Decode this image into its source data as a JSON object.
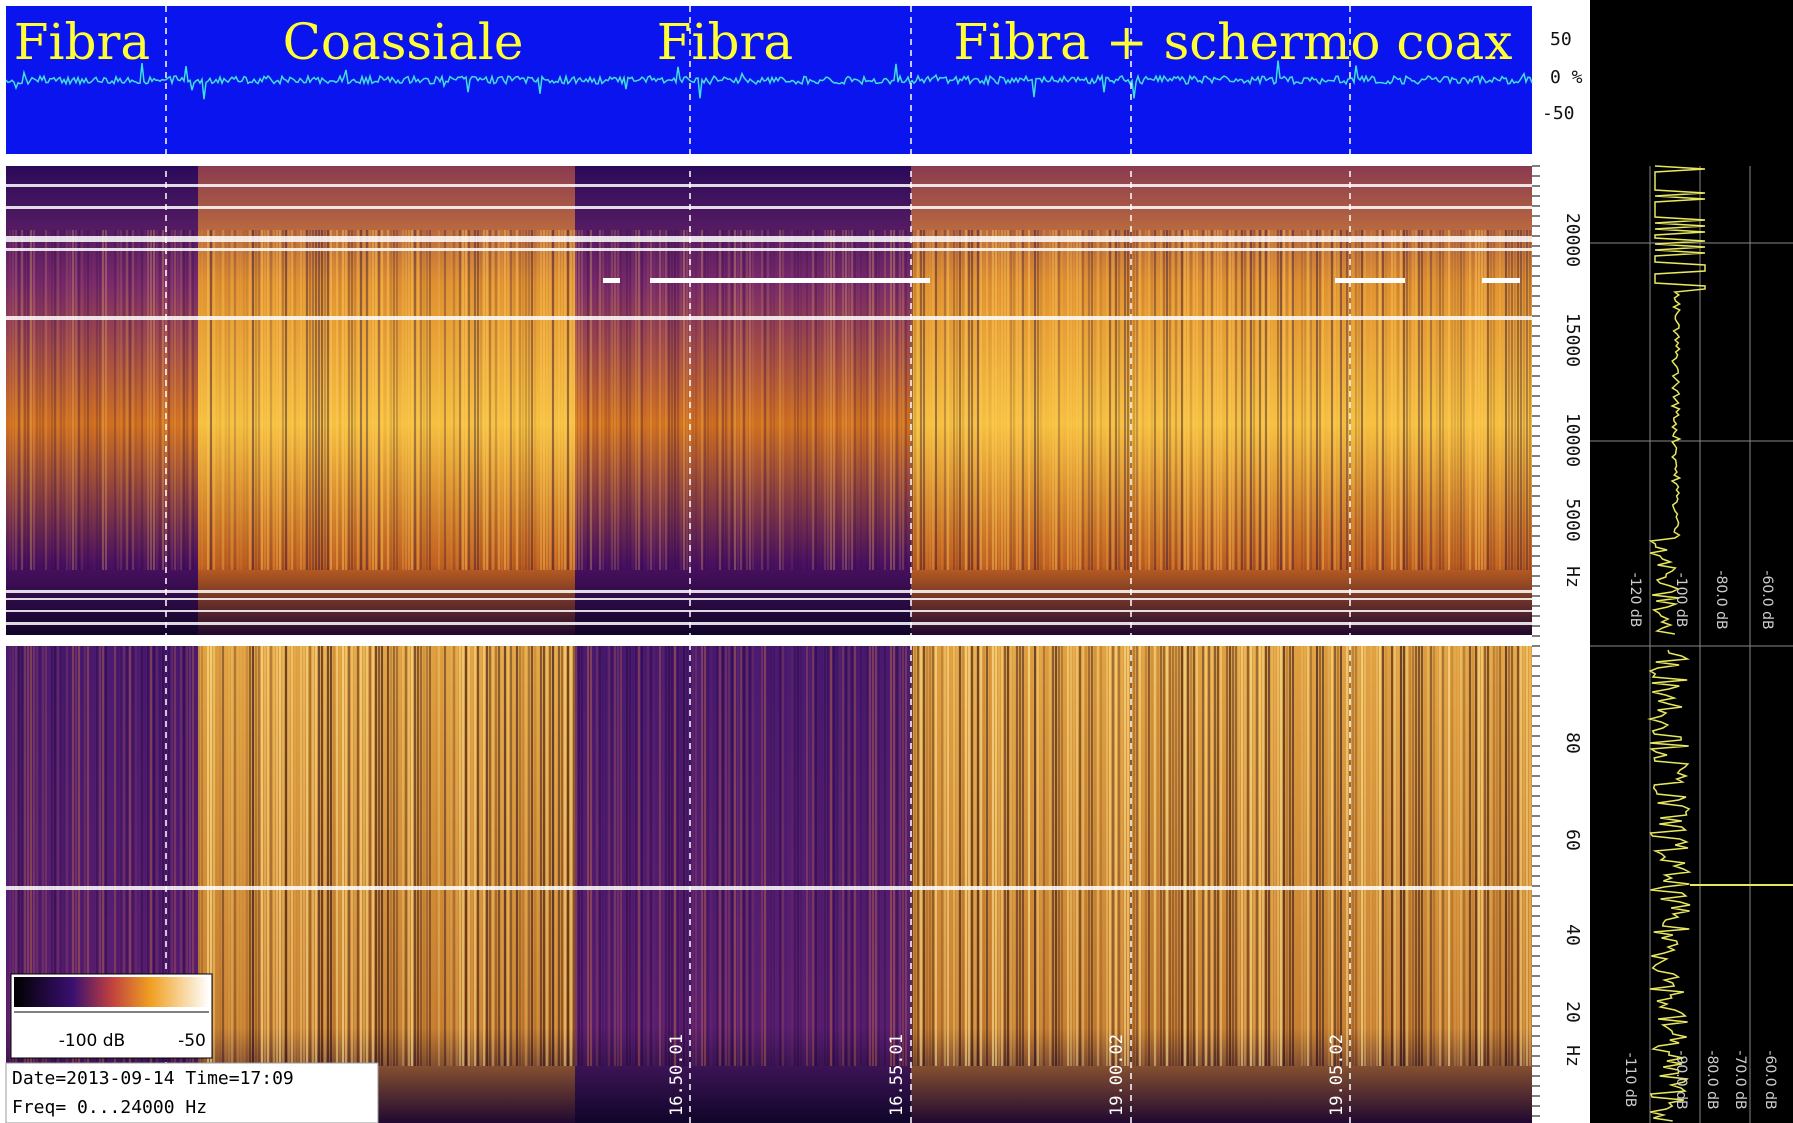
{
  "waveform": {
    "labels": [
      "Fibra",
      "Coassiale",
      "Fibra",
      "Fibra + schermo coax"
    ],
    "axis": [
      "50",
      "0 %",
      "-50"
    ]
  },
  "spectrogram_hf": {
    "axis": [
      "20000",
      "15000",
      "10000",
      "5000",
      "Hz"
    ],
    "level_axis": [
      "-120 dB",
      "-100 dB",
      "-80.0 dB",
      "-60.0 dB"
    ]
  },
  "spectrogram_lf": {
    "axis": [
      "80",
      "60",
      "40",
      "20",
      "Hz"
    ],
    "level_axis": [
      "-110 dB",
      "-90.0 dB",
      "-80.0 dB",
      "-70.0 dB",
      "-60.0 dB"
    ],
    "times": [
      "16.50.01",
      "16.55.01",
      "19.00.02",
      "19.05.02"
    ]
  },
  "colorbar": {
    "min": "-100 dB",
    "max": "-50"
  },
  "info": {
    "date_line": "Date=2013-09-14 Time=17:09",
    "freq_line": "Freq= 0...24000 Hz"
  }
}
